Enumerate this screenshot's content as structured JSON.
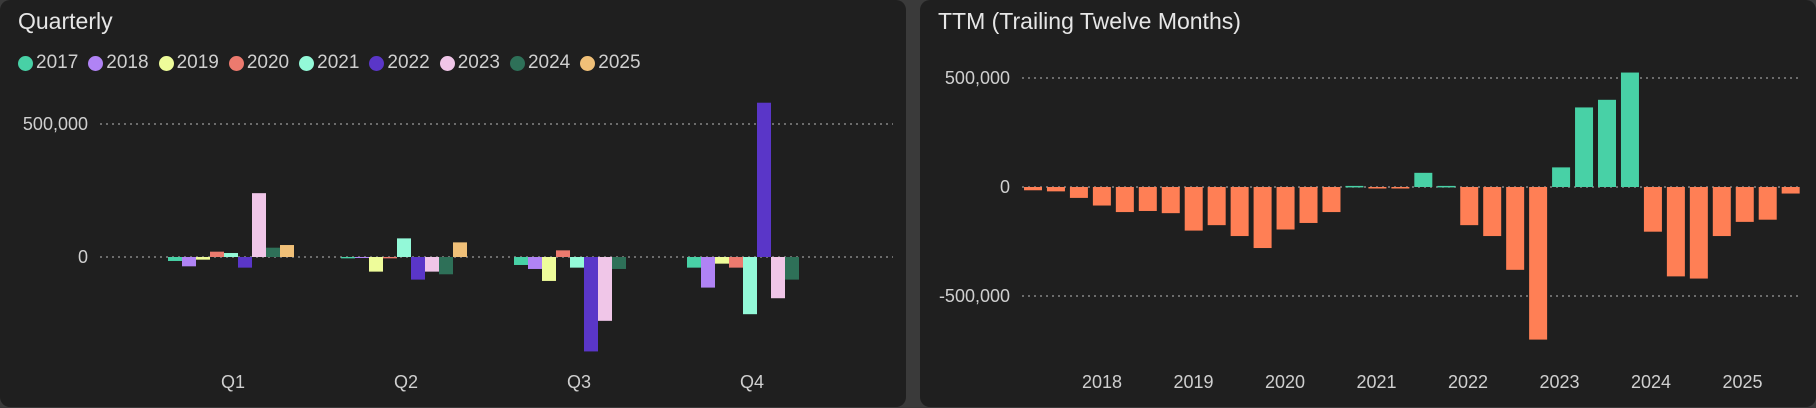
{
  "colors": {
    "background": "#1f1f1f",
    "text": "#cfcfcf",
    "grid": "#9a9a9a",
    "positive": "#48d1a6",
    "negative": "#ff7f55"
  },
  "chart_data": [
    {
      "type": "bar",
      "title": "Quarterly",
      "categories": [
        "Q1",
        "Q2",
        "Q3",
        "Q4"
      ],
      "y_ticks": [
        {
          "value": 0,
          "label": "0"
        },
        {
          "value": 500000,
          "label": "500,000"
        }
      ],
      "ylim": [
        -400000,
        650000
      ],
      "grid": true,
      "legend_position": "top-left",
      "series": [
        {
          "name": "2017",
          "color": "#48d1a6",
          "values": [
            -15000,
            -5000,
            -30000,
            -40000
          ]
        },
        {
          "name": "2018",
          "color": "#b083f5",
          "values": [
            -35000,
            -3000,
            -45000,
            -115000
          ]
        },
        {
          "name": "2019",
          "color": "#eefc9a",
          "values": [
            -10000,
            -55000,
            -90000,
            -25000
          ]
        },
        {
          "name": "2020",
          "color": "#ec7a6e",
          "values": [
            20000,
            -5000,
            25000,
            -40000
          ]
        },
        {
          "name": "2021",
          "color": "#93f9d8",
          "values": [
            15000,
            70000,
            -40000,
            -215000
          ]
        },
        {
          "name": "2022",
          "color": "#5a36c8",
          "values": [
            -40000,
            -85000,
            -355000,
            580000
          ]
        },
        {
          "name": "2023",
          "color": "#f0c6e8",
          "values": [
            240000,
            -55000,
            -240000,
            -155000
          ]
        },
        {
          "name": "2024",
          "color": "#2e7058",
          "values": [
            35000,
            -65000,
            -45000,
            -85000
          ]
        },
        {
          "name": "2025",
          "color": "#f0c078",
          "values": [
            45000,
            55000,
            null,
            null
          ]
        }
      ]
    },
    {
      "type": "bar",
      "title": "TTM (Trailing Twelve Months)",
      "x_tick_labels": [
        "2018",
        "2019",
        "2020",
        "2021",
        "2022",
        "2023",
        "2024",
        "2025"
      ],
      "y_ticks": [
        {
          "value": -500000,
          "label": "-500,000"
        },
        {
          "value": 0,
          "label": "0"
        },
        {
          "value": 500000,
          "label": "500,000"
        }
      ],
      "ylim": [
        -750000,
        620000
      ],
      "grid": true,
      "values": [
        -15000,
        -20000,
        -50000,
        -85000,
        -115000,
        -110000,
        -120000,
        -200000,
        -175000,
        -225000,
        -280000,
        -195000,
        -165000,
        -115000,
        5000,
        -5000,
        -5000,
        65000,
        5000,
        -175000,
        -225000,
        -380000,
        -700000,
        90000,
        365000,
        400000,
        525000,
        -205000,
        -410000,
        -420000,
        -225000,
        -160000,
        -150000,
        -30000
      ]
    }
  ]
}
